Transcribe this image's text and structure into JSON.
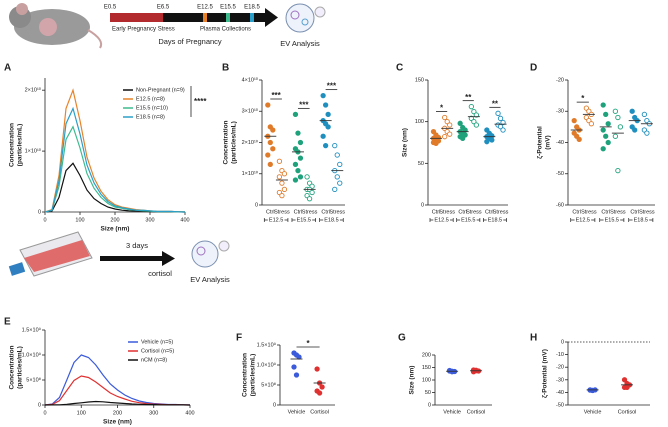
{
  "schematic_top": {
    "stages": [
      "E0.5",
      "E6.5",
      "E12.5",
      "E15.5",
      "E18.5"
    ],
    "stress_label": "Early Pregnancy Stress",
    "collection_label": "Plasma Collections",
    "axis_label": "Days of Pregnancy",
    "analysis": "EV Analysis"
  },
  "schematic_bottom": {
    "duration": "3 days",
    "treatment": "cortisol",
    "analysis": "EV Analysis"
  },
  "chart_data": [
    {
      "type": "line",
      "panel": "A",
      "xlabel": "Size (nm)",
      "ylabel": [
        "Concentration",
        "(particles/mL)"
      ],
      "x": [
        0,
        20,
        40,
        60,
        80,
        100,
        120,
        140,
        160,
        180,
        200,
        220,
        240,
        260,
        280,
        300,
        320,
        340,
        360,
        380,
        400
      ],
      "xlim": [
        0,
        400
      ],
      "xticks": [
        0,
        100,
        200,
        300,
        400
      ],
      "ylim": [
        0,
        22000000000.0
      ],
      "yticks": [
        0,
        {
          "value": 10000000000.0,
          "label": "1×10¹⁰"
        },
        {
          "value": 20000000000.0,
          "label": "2×10¹⁰"
        }
      ],
      "annotation": "****",
      "series": [
        {
          "name": "Non-Pregnant (n=9)",
          "color": "#111111",
          "values": [
            0,
            160000000.0,
            2400000000.0,
            6800000000.0,
            8000000000.0,
            6000000000.0,
            3600000000.0,
            2200000000.0,
            1400000000.0,
            800000000.0,
            500000000.0,
            300000000.0,
            200000000.0,
            160000000.0,
            120000000.0,
            80000000.0,
            40000000.0,
            40000000.0,
            40000000.0,
            20000000.0,
            0
          ]
        },
        {
          "name": "E12.5 (n=8)",
          "color": "#e8832a",
          "values": [
            0,
            400000000.0,
            6000000000.0,
            17000000000.0,
            20000000000.0,
            15000000000.0,
            9000000000.0,
            5600000000.0,
            3400000000.0,
            2000000000.0,
            1200000000.0,
            800000000.0,
            600000000.0,
            400000000.0,
            300000000.0,
            200000000.0,
            100000000.0,
            100000000.0,
            100000000.0,
            40000000.0,
            0
          ]
        },
        {
          "name": "E15.5 (n=10)",
          "color": "#3dbb8f",
          "values": [
            0,
            300000000.0,
            4200000000.0,
            11900000000.0,
            14000000000.0,
            10500000000.0,
            6300000000.0,
            3900000000.0,
            2400000000.0,
            1400000000.0,
            800000000.0,
            600000000.0,
            400000000.0,
            300000000.0,
            200000000.0,
            140000000.0,
            70000000.0,
            70000000.0,
            70000000.0,
            30000000.0,
            0
          ]
        },
        {
          "name": "E18.5 (n=8)",
          "color": "#2a9fc9",
          "values": [
            0,
            300000000.0,
            5100000000.0,
            14500000000.0,
            17000000000.0,
            12800000000.0,
            7700000000.0,
            4800000000.0,
            2900000000.0,
            1700000000.0,
            1000000000.0,
            700000000.0,
            500000000.0,
            300000000.0,
            300000000.0,
            200000000.0,
            100000000.0,
            100000000.0,
            100000000.0,
            30000000.0,
            0
          ]
        }
      ]
    },
    {
      "type": "strip",
      "panel": "B",
      "ylabel": [
        "Concentration",
        "(particles/mL)"
      ],
      "ylim": [
        0,
        40000000000.0
      ],
      "yticks": [
        0,
        {
          "value": 10000000000.0,
          "label": "1×10¹⁰"
        },
        {
          "value": 20000000000.0,
          "label": "2×10¹⁰"
        },
        {
          "value": 30000000000.0,
          "label": "3×10¹⁰"
        },
        {
          "value": 40000000000.0,
          "label": "4×10¹⁰"
        }
      ],
      "significance": [
        "***",
        "***",
        "***"
      ],
      "groups": [
        {
          "name": "E12.5",
          "color": "#e07b2a",
          "series": [
            {
              "name": "Ctrl",
              "filled": true,
              "values": [
                32000000000.0,
                25000000000.0,
                24000000000.0,
                22000000000.0,
                20000000000.0,
                18000000000.0,
                16000000000.0,
                13000000000.0
              ],
              "mean": 22000000000.0
            },
            {
              "name": "Stress",
              "filled": false,
              "values": [
                14000000000.0,
                11000000000.0,
                10000000000.0,
                9000000000.0,
                7000000000.0,
                5000000000.0,
                4000000000.0,
                3000000000.0
              ],
              "mean": 8000000000.0
            }
          ]
        },
        {
          "name": "E15.5",
          "color": "#1fa27c",
          "series": [
            {
              "name": "Ctrl",
              "filled": true,
              "values": [
                29000000000.0,
                23000000000.0,
                20000000000.0,
                18000000000.0,
                17000000000.0,
                15000000000.0,
                13000000000.0,
                11000000000.0,
                9000000000.0,
                8000000000.0
              ],
              "mean": 17000000000.0
            },
            {
              "name": "Stress",
              "filled": false,
              "values": [
                9000000000.0,
                7000000000.0,
                6000000000.0,
                5000000000.0,
                5000000000.0,
                4000000000.0,
                3000000000.0,
                2000000000.0
              ],
              "mean": 5000000000.0
            }
          ]
        },
        {
          "name": "E18.5",
          "color": "#1e8fbf",
          "series": [
            {
              "name": "Ctrl",
              "filled": true,
              "values": [
                35000000000.0,
                32000000000.0,
                29000000000.0,
                27000000000.0,
                26000000000.0,
                25000000000.0,
                22000000000.0,
                19000000000.0
              ],
              "mean": 27000000000.0
            },
            {
              "name": "Stress",
              "filled": false,
              "values": [
                19000000000.0,
                16000000000.0,
                13000000000.0,
                11000000000.0,
                9000000000.0,
                7000000000.0,
                5000000000.0
              ],
              "mean": 11000000000.0
            }
          ]
        }
      ]
    },
    {
      "type": "strip",
      "panel": "C",
      "ylabel": [
        "Size (nm)"
      ],
      "ylim": [
        0,
        150
      ],
      "yticks": [
        0,
        50,
        100,
        150
      ],
      "significance": [
        "*",
        "**",
        "**"
      ],
      "groups": [
        {
          "name": "E12.5",
          "color": "#e07b2a",
          "series": [
            {
              "name": "Ctrl",
              "filled": true,
              "values": [
                88,
                84,
                81,
                80,
                78,
                77,
                75,
                74
              ],
              "mean": 80
            },
            {
              "name": "Stress",
              "filled": false,
              "values": [
                105,
                100,
                96,
                92,
                88,
                85,
                82
              ],
              "mean": 92
            }
          ]
        },
        {
          "name": "E15.5",
          "color": "#1fa27c",
          "series": [
            {
              "name": "Ctrl",
              "filled": true,
              "values": [
                98,
                93,
                90,
                88,
                86,
                84,
                82,
                80
              ],
              "mean": 88
            },
            {
              "name": "Stress",
              "filled": false,
              "values": [
                118,
                112,
                108,
                104,
                100,
                96
              ],
              "mean": 106
            }
          ]
        },
        {
          "name": "E18.5",
          "color": "#1e8fbf",
          "series": [
            {
              "name": "Ctrl",
              "filled": true,
              "values": [
                90,
                86,
                83,
                82,
                80,
                78,
                76
              ],
              "mean": 82
            },
            {
              "name": "Stress",
              "filled": false,
              "values": [
                110,
                104,
                99,
                96,
                94,
                90
              ],
              "mean": 97
            }
          ]
        }
      ]
    },
    {
      "type": "strip",
      "panel": "D",
      "ylabel": [
        "ζ-Potential",
        "(mV)"
      ],
      "ylim": [
        -60,
        -20
      ],
      "yticks": [
        -60,
        -50,
        -40,
        -30,
        -20
      ],
      "significance": [
        "*",
        null,
        null
      ],
      "groups": [
        {
          "name": "E12.5",
          "color": "#e07b2a",
          "series": [
            {
              "name": "Ctrl",
              "filled": true,
              "values": [
                -33,
                -35,
                -36,
                -37,
                -38,
                -39
              ],
              "mean": -36
            },
            {
              "name": "Stress",
              "filled": false,
              "values": [
                -29,
                -30,
                -31,
                -32,
                -33,
                -34
              ],
              "mean": -31
            }
          ]
        },
        {
          "name": "E15.5",
          "color": "#1fa27c",
          "series": [
            {
              "name": "Ctrl",
              "filled": true,
              "values": [
                -28,
                -31,
                -34,
                -36,
                -38,
                -40,
                -42
              ],
              "mean": -35
            },
            {
              "name": "Stress",
              "filled": false,
              "values": [
                -30,
                -32,
                -35,
                -38,
                -49
              ],
              "mean": -37
            }
          ]
        },
        {
          "name": "E18.5",
          "color": "#1e8fbf",
          "series": [
            {
              "name": "Ctrl",
              "filled": true,
              "values": [
                -30,
                -32,
                -33,
                -35,
                -36
              ],
              "mean": -33
            },
            {
              "name": "Stress",
              "filled": false,
              "values": [
                -31,
                -33,
                -34,
                -36,
                -37
              ],
              "mean": -34
            }
          ]
        }
      ]
    },
    {
      "type": "line",
      "panel": "E",
      "xlabel": "Size (nm)",
      "ylabel": [
        "Concentration",
        "(particles/mL)"
      ],
      "x": [
        0,
        20,
        40,
        60,
        80,
        100,
        120,
        140,
        160,
        180,
        200,
        220,
        240,
        260,
        280,
        300,
        320,
        340,
        360,
        380,
        400
      ],
      "xlim": [
        0,
        400
      ],
      "xticks": [
        0,
        100,
        200,
        300,
        400
      ],
      "ylim": [
        0,
        1500000000.0
      ],
      "yticks": [
        0,
        {
          "value": 500000000.0,
          "label": "5×10⁸"
        },
        {
          "value": 1000000000.0,
          "label": "1.0×10⁹"
        },
        {
          "value": 1500000000.0,
          "label": "1.5×10⁹"
        }
      ],
      "series": [
        {
          "name": "Vehicle (n=5)",
          "color": "#3b5bdb",
          "values": [
            0,
            20000000.0,
            150000000.0,
            500000000.0,
            850000000.0,
            1000000000.0,
            950000000.0,
            800000000.0,
            600000000.0,
            420000000.0,
            300000000.0,
            200000000.0,
            130000000.0,
            80000000.0,
            50000000.0,
            30000000.0,
            20000000.0,
            10000000.0,
            10000000.0,
            5000000.0,
            0
          ]
        },
        {
          "name": "Cortisol (n=5)",
          "color": "#e03131",
          "values": [
            0,
            12000000.0,
            87000000.0,
            290000000.0,
            490000000.0,
            580000000.0,
            550000000.0,
            460000000.0,
            350000000.0,
            240000000.0,
            170000000.0,
            120000000.0,
            75000000.0,
            46000000.0,
            29000000.0,
            17000000.0,
            12000000.0,
            6000000.0,
            6000000.0,
            3000000.0,
            0
          ]
        },
        {
          "name": "nCM (n=8)",
          "color": "#111111",
          "values": [
            0,
            1000000.0,
            5000000.0,
            15000000.0,
            30000000.0,
            45000000.0,
            60000000.0,
            70000000.0,
            65000000.0,
            50000000.0,
            40000000.0,
            30000000.0,
            20000000.0,
            15000000.0,
            10000000.0,
            7000000.0,
            5000000.0,
            3000000.0,
            2000000.0,
            1000000.0,
            0
          ]
        }
      ]
    },
    {
      "type": "strip",
      "panel": "F",
      "ylabel": [
        "Concentration",
        "(particles/mL)"
      ],
      "ylim": [
        0,
        1500000000.0
      ],
      "yticks": [
        0,
        {
          "value": 500000000.0,
          "label": "5×10⁸"
        },
        {
          "value": 1000000000.0,
          "label": "1.0×10⁹"
        },
        {
          "value": 1500000000.0,
          "label": "1.5×10⁹"
        }
      ],
      "significance": [
        "*"
      ],
      "groups": [
        {
          "series": [
            {
              "name": "Vehicle",
              "color": "#3b5bdb",
              "filled": true,
              "values": [
                1300000000.0,
                1250000000.0,
                1200000000.0,
                950000000.0,
                750000000.0
              ],
              "mean": 1150000000.0
            },
            {
              "name": "Cortisol",
              "color": "#e03131",
              "filled": true,
              "values": [
                900000000.0,
                550000000.0,
                450000000.0,
                350000000.0,
                300000000.0
              ],
              "mean": 550000000.0
            }
          ]
        }
      ]
    },
    {
      "type": "strip",
      "panel": "G",
      "ylabel": [
        "Size (nm)"
      ],
      "ylim": [
        0,
        200
      ],
      "yticks": [
        0,
        50,
        100,
        150,
        200
      ],
      "groups": [
        {
          "series": [
            {
              "name": "Vehicle",
              "color": "#3b5bdb",
              "filled": true,
              "values": [
                138,
                135,
                134,
                136,
                133
              ],
              "mean": 135
            },
            {
              "name": "Cortisol",
              "color": "#e03131",
              "filled": true,
              "values": [
                140,
                137,
                136,
                133,
                139
              ],
              "mean": 137
            }
          ]
        }
      ]
    },
    {
      "type": "strip",
      "panel": "H",
      "ylabel": [
        "ζ-Potential (mV)"
      ],
      "ylim": [
        -50,
        0
      ],
      "yticks": [
        -50,
        -40,
        -30,
        -20,
        -10,
        0
      ],
      "zero_line": true,
      "groups": [
        {
          "series": [
            {
              "name": "Vehicle",
              "color": "#3b5bdb",
              "filled": true,
              "values": [
                -38,
                -38.5,
                -38,
                -38.2,
                -38.4
              ],
              "mean": -38
            },
            {
              "name": "Cortisol",
              "color": "#e03131",
              "filled": true,
              "values": [
                -30,
                -33,
                -34,
                -36,
                -36
              ],
              "mean": -34
            }
          ]
        }
      ]
    }
  ]
}
